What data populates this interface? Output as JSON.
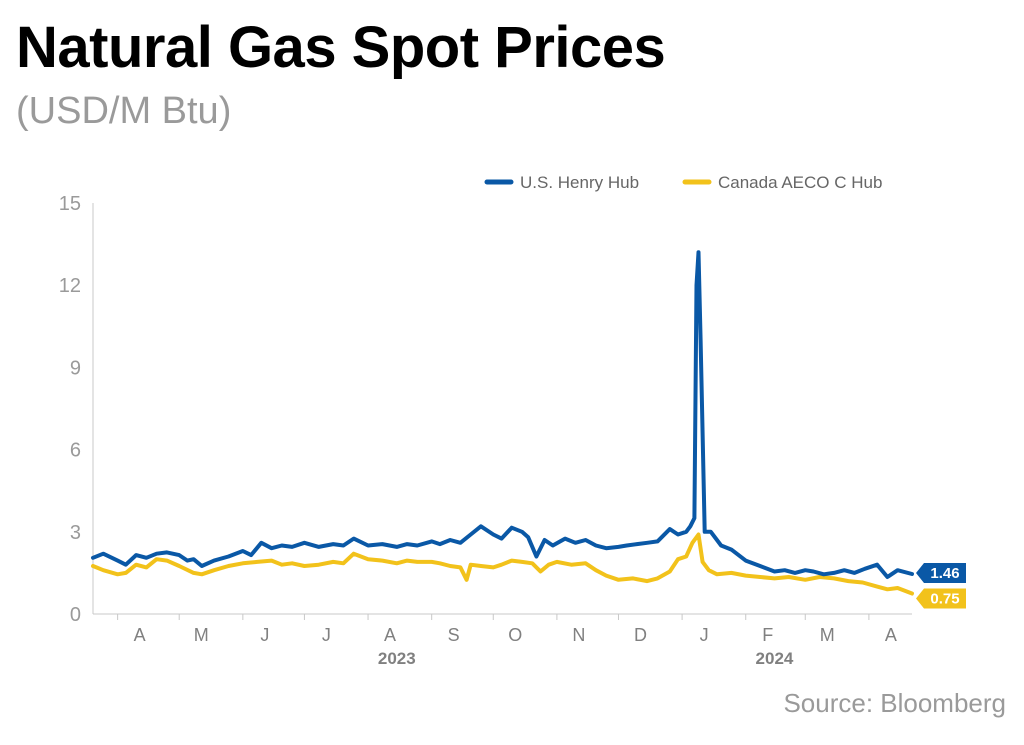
{
  "title": "Natural Gas Spot Prices",
  "subtitle": "(USD/M Btu)",
  "source": "Source: Bloomberg",
  "chart_data": {
    "type": "line",
    "title": "Natural Gas Spot Prices",
    "ylabel": "(USD/M Btu)",
    "ylim": [
      0,
      15
    ],
    "yticks": [
      0,
      3,
      6,
      9,
      12,
      15
    ],
    "xlim": [
      "2023-03-20",
      "2024-04-22"
    ],
    "month_labels": [
      {
        "label": "A",
        "date": "2023-04-01"
      },
      {
        "label": "M",
        "date": "2023-05-01"
      },
      {
        "label": "J",
        "date": "2023-06-01"
      },
      {
        "label": "J",
        "date": "2023-07-01"
      },
      {
        "label": "A",
        "date": "2023-08-01"
      },
      {
        "label": "S",
        "date": "2023-09-01"
      },
      {
        "label": "O",
        "date": "2023-10-01"
      },
      {
        "label": "N",
        "date": "2023-11-01"
      },
      {
        "label": "D",
        "date": "2023-12-01"
      },
      {
        "label": "J",
        "date": "2024-01-01"
      },
      {
        "label": "F",
        "date": "2024-02-01"
      },
      {
        "label": "M",
        "date": "2024-03-01"
      },
      {
        "label": "A",
        "date": "2024-04-01"
      }
    ],
    "year_labels": [
      {
        "label": "2023",
        "date": "2023-08-15"
      },
      {
        "label": "2024",
        "date": "2024-02-15"
      }
    ],
    "grid": false,
    "legend": "top-right",
    "series": [
      {
        "name": "U.S. Henry Hub",
        "color": "#0a58a6",
        "end_label": "1.46",
        "points": [
          [
            "2023-03-20",
            2.05
          ],
          [
            "2023-03-25",
            2.2
          ],
          [
            "2023-04-01",
            1.95
          ],
          [
            "2023-04-05",
            1.8
          ],
          [
            "2023-04-10",
            2.15
          ],
          [
            "2023-04-15",
            2.05
          ],
          [
            "2023-04-20",
            2.2
          ],
          [
            "2023-04-25",
            2.25
          ],
          [
            "2023-05-01",
            2.15
          ],
          [
            "2023-05-05",
            1.95
          ],
          [
            "2023-05-08",
            2.0
          ],
          [
            "2023-05-12",
            1.75
          ],
          [
            "2023-05-18",
            1.95
          ],
          [
            "2023-05-25",
            2.1
          ],
          [
            "2023-06-01",
            2.3
          ],
          [
            "2023-06-05",
            2.15
          ],
          [
            "2023-06-10",
            2.6
          ],
          [
            "2023-06-15",
            2.4
          ],
          [
            "2023-06-20",
            2.5
          ],
          [
            "2023-06-25",
            2.45
          ],
          [
            "2023-07-01",
            2.6
          ],
          [
            "2023-07-08",
            2.45
          ],
          [
            "2023-07-15",
            2.55
          ],
          [
            "2023-07-20",
            2.5
          ],
          [
            "2023-07-25",
            2.75
          ],
          [
            "2023-08-01",
            2.5
          ],
          [
            "2023-08-08",
            2.55
          ],
          [
            "2023-08-15",
            2.45
          ],
          [
            "2023-08-20",
            2.55
          ],
          [
            "2023-08-25",
            2.5
          ],
          [
            "2023-09-01",
            2.65
          ],
          [
            "2023-09-05",
            2.55
          ],
          [
            "2023-09-10",
            2.7
          ],
          [
            "2023-09-15",
            2.6
          ],
          [
            "2023-09-20",
            2.9
          ],
          [
            "2023-09-25",
            3.2
          ],
          [
            "2023-10-01",
            2.9
          ],
          [
            "2023-10-05",
            2.75
          ],
          [
            "2023-10-10",
            3.15
          ],
          [
            "2023-10-15",
            3.0
          ],
          [
            "2023-10-18",
            2.8
          ],
          [
            "2023-10-22",
            2.1
          ],
          [
            "2023-10-26",
            2.7
          ],
          [
            "2023-10-30",
            2.5
          ],
          [
            "2023-11-05",
            2.75
          ],
          [
            "2023-11-10",
            2.6
          ],
          [
            "2023-11-15",
            2.7
          ],
          [
            "2023-11-20",
            2.5
          ],
          [
            "2023-11-25",
            2.4
          ],
          [
            "2023-12-01",
            2.45
          ],
          [
            "2023-12-05",
            2.5
          ],
          [
            "2023-12-10",
            2.55
          ],
          [
            "2023-12-15",
            2.6
          ],
          [
            "2023-12-20",
            2.65
          ],
          [
            "2023-12-26",
            3.1
          ],
          [
            "2023-12-30",
            2.9
          ],
          [
            "2024-01-03",
            3.0
          ],
          [
            "2024-01-05",
            3.2
          ],
          [
            "2024-01-07",
            3.5
          ],
          [
            "2024-01-08",
            12.0
          ],
          [
            "2024-01-09",
            13.2
          ],
          [
            "2024-01-10",
            10.0
          ],
          [
            "2024-01-12",
            3.0
          ],
          [
            "2024-01-15",
            3.0
          ],
          [
            "2024-01-20",
            2.5
          ],
          [
            "2024-01-25",
            2.35
          ],
          [
            "2024-02-01",
            1.95
          ],
          [
            "2024-02-08",
            1.75
          ],
          [
            "2024-02-15",
            1.55
          ],
          [
            "2024-02-20",
            1.6
          ],
          [
            "2024-02-25",
            1.5
          ],
          [
            "2024-03-01",
            1.6
          ],
          [
            "2024-03-05",
            1.55
          ],
          [
            "2024-03-10",
            1.45
          ],
          [
            "2024-03-15",
            1.5
          ],
          [
            "2024-03-20",
            1.6
          ],
          [
            "2024-03-25",
            1.5
          ],
          [
            "2024-03-30",
            1.65
          ],
          [
            "2024-04-05",
            1.8
          ],
          [
            "2024-04-10",
            1.35
          ],
          [
            "2024-04-15",
            1.6
          ],
          [
            "2024-04-22",
            1.46
          ]
        ]
      },
      {
        "name": "Canada AECO C Hub",
        "color": "#f2c21b",
        "end_label": "0.75",
        "points": [
          [
            "2023-03-20",
            1.75
          ],
          [
            "2023-03-25",
            1.6
          ],
          [
            "2023-04-01",
            1.45
          ],
          [
            "2023-04-05",
            1.5
          ],
          [
            "2023-04-10",
            1.8
          ],
          [
            "2023-04-15",
            1.7
          ],
          [
            "2023-04-20",
            2.0
          ],
          [
            "2023-04-25",
            1.95
          ],
          [
            "2023-05-01",
            1.75
          ],
          [
            "2023-05-08",
            1.5
          ],
          [
            "2023-05-12",
            1.45
          ],
          [
            "2023-05-18",
            1.6
          ],
          [
            "2023-05-25",
            1.75
          ],
          [
            "2023-06-01",
            1.85
          ],
          [
            "2023-06-08",
            1.9
          ],
          [
            "2023-06-15",
            1.95
          ],
          [
            "2023-06-20",
            1.8
          ],
          [
            "2023-06-25",
            1.85
          ],
          [
            "2023-07-01",
            1.75
          ],
          [
            "2023-07-08",
            1.8
          ],
          [
            "2023-07-15",
            1.9
          ],
          [
            "2023-07-20",
            1.85
          ],
          [
            "2023-07-25",
            2.2
          ],
          [
            "2023-08-01",
            2.0
          ],
          [
            "2023-08-08",
            1.95
          ],
          [
            "2023-08-15",
            1.85
          ],
          [
            "2023-08-20",
            1.95
          ],
          [
            "2023-08-25",
            1.9
          ],
          [
            "2023-09-01",
            1.9
          ],
          [
            "2023-09-05",
            1.85
          ],
          [
            "2023-09-10",
            1.75
          ],
          [
            "2023-09-15",
            1.7
          ],
          [
            "2023-09-18",
            1.25
          ],
          [
            "2023-09-20",
            1.8
          ],
          [
            "2023-09-25",
            1.75
          ],
          [
            "2023-10-01",
            1.7
          ],
          [
            "2023-10-05",
            1.8
          ],
          [
            "2023-10-10",
            1.95
          ],
          [
            "2023-10-15",
            1.9
          ],
          [
            "2023-10-20",
            1.85
          ],
          [
            "2023-10-24",
            1.55
          ],
          [
            "2023-10-28",
            1.8
          ],
          [
            "2023-11-01",
            1.9
          ],
          [
            "2023-11-08",
            1.8
          ],
          [
            "2023-11-15",
            1.85
          ],
          [
            "2023-11-20",
            1.6
          ],
          [
            "2023-11-25",
            1.4
          ],
          [
            "2023-12-01",
            1.25
          ],
          [
            "2023-12-08",
            1.3
          ],
          [
            "2023-12-15",
            1.2
          ],
          [
            "2023-12-20",
            1.3
          ],
          [
            "2023-12-26",
            1.55
          ],
          [
            "2023-12-30",
            2.0
          ],
          [
            "2024-01-03",
            2.1
          ],
          [
            "2024-01-06",
            2.6
          ],
          [
            "2024-01-09",
            2.9
          ],
          [
            "2024-01-11",
            1.9
          ],
          [
            "2024-01-14",
            1.6
          ],
          [
            "2024-01-18",
            1.45
          ],
          [
            "2024-01-25",
            1.5
          ],
          [
            "2024-02-01",
            1.4
          ],
          [
            "2024-02-08",
            1.35
          ],
          [
            "2024-02-15",
            1.3
          ],
          [
            "2024-02-22",
            1.35
          ],
          [
            "2024-03-01",
            1.25
          ],
          [
            "2024-03-08",
            1.35
          ],
          [
            "2024-03-15",
            1.3
          ],
          [
            "2024-03-22",
            1.2
          ],
          [
            "2024-03-29",
            1.15
          ],
          [
            "2024-04-05",
            1.0
          ],
          [
            "2024-04-10",
            0.9
          ],
          [
            "2024-04-15",
            0.95
          ],
          [
            "2024-04-22",
            0.75
          ]
        ]
      }
    ]
  }
}
